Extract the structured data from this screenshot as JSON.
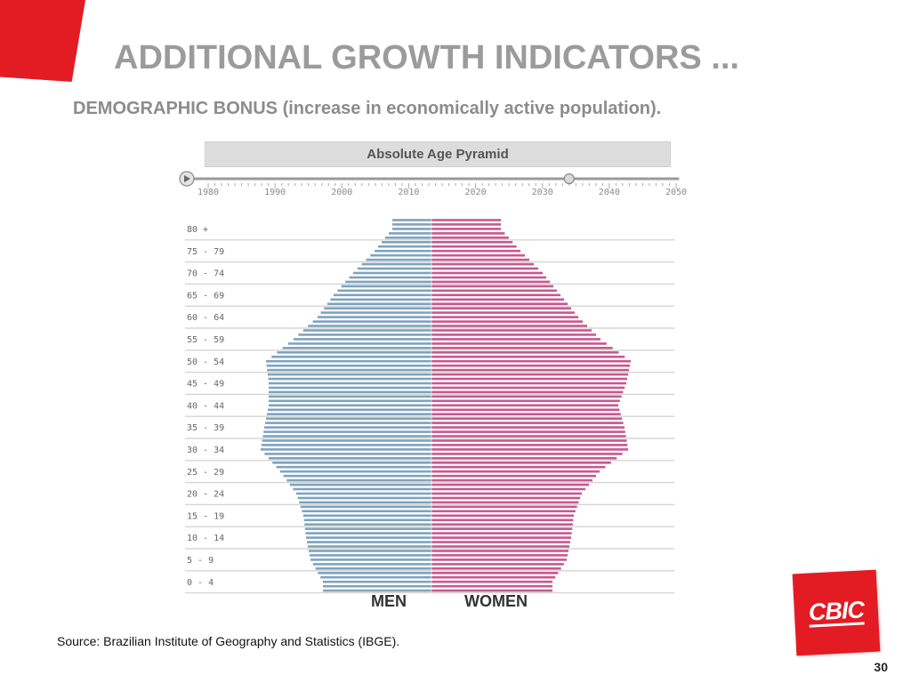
{
  "slide": {
    "title": "ADDITIONAL GROWTH INDICATORS ...",
    "subtitle": "DEMOGRAPHIC BONUS (increase in economically active population).",
    "source": "Source: Brazilian Institute of Geography and Statistics (IBGE).",
    "page_number": "30",
    "logo_text": "CBIC",
    "accent_color": "#e31b23"
  },
  "timeline": {
    "years": [
      "1980",
      "1990",
      "2000",
      "2010",
      "2020",
      "2030",
      "2040",
      "2050"
    ],
    "min_year": 1980,
    "max_year": 2050,
    "selected_year": 2034,
    "play_icon": "play-icon"
  },
  "chart_data": {
    "type": "bar",
    "title": "Absolute Age Pyramid",
    "categories": [
      "0 - 4",
      "5 - 9",
      "10 - 14",
      "15 - 19",
      "20 - 24",
      "25 - 29",
      "30 - 34",
      "35 - 39",
      "40 - 44",
      "45 - 49",
      "50 - 54",
      "55 - 59",
      "60 - 64",
      "65 - 69",
      "70 - 74",
      "75 - 79",
      "80 +"
    ],
    "series": [
      {
        "name": "MEN",
        "color": "#7fa3bd",
        "values": [
          122,
          136,
          141,
          144,
          152,
          170,
          192,
          188,
          183,
          183,
          186,
          155,
          128,
          110,
          88,
          64,
          44
        ]
      },
      {
        "name": "WOMEN",
        "color": "#c8588f",
        "values": [
          136,
          152,
          157,
          160,
          169,
          189,
          221,
          217,
          210,
          219,
          224,
          190,
          165,
          145,
          125,
          100,
          78
        ]
      }
    ],
    "grid": true,
    "unit_note": "relative bar lengths"
  }
}
